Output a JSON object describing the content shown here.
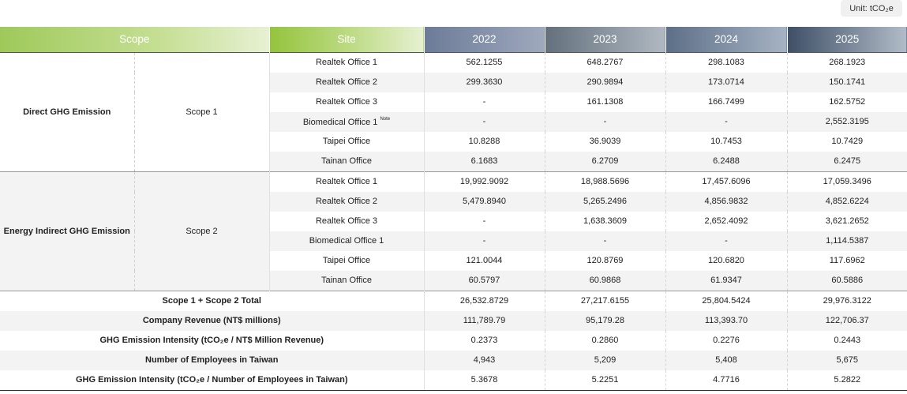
{
  "unit_label": "Unit: tCO₂e",
  "header": {
    "scope": "Scope",
    "site": "Site",
    "years": [
      "2022",
      "2023",
      "2024",
      "2025"
    ]
  },
  "scope1": {
    "category": "Direct GHG Emission",
    "label": "Scope 1",
    "rows": [
      {
        "site": "Realtek Office 1",
        "note": "",
        "values": [
          "562.1255",
          "648.2767",
          "298.1083",
          "268.1923"
        ]
      },
      {
        "site": "Realtek Office 2",
        "note": "",
        "values": [
          "299.3630",
          "290.9894",
          "173.0714",
          "150.1741"
        ]
      },
      {
        "site": "Realtek Office 3",
        "note": "",
        "values": [
          "-",
          "161.1308",
          "166.7499",
          "162.5752"
        ]
      },
      {
        "site": "Biomedical Office 1",
        "note": "Note",
        "values": [
          "-",
          "-",
          "-",
          "2,552.3195"
        ]
      },
      {
        "site": "Taipei Office",
        "note": "",
        "values": [
          "10.8288",
          "36.9039",
          "10.7453",
          "10.7429"
        ]
      },
      {
        "site": "Tainan Office",
        "note": "",
        "values": [
          "6.1683",
          "6.2709",
          "6.2488",
          "6.2475"
        ]
      }
    ]
  },
  "scope2": {
    "category": "Energy Indirect GHG Emission",
    "label": "Scope 2",
    "rows": [
      {
        "site": "Realtek Office 1",
        "values": [
          "19,992.9092",
          "18,988.5696",
          "17,457.6096",
          "17,059.3496"
        ]
      },
      {
        "site": "Realtek Office 2",
        "values": [
          "5,479.8940",
          "5,265.2496",
          "4,856.9832",
          "4,852.6224"
        ]
      },
      {
        "site": "Realtek Office 3",
        "values": [
          "-",
          "1,638.3609",
          "2,652.4092",
          "3,621.2652"
        ]
      },
      {
        "site": "Biomedical Office 1",
        "values": [
          "-",
          "-",
          "-",
          "1,114.5387"
        ]
      },
      {
        "site": "Taipei Office",
        "values": [
          "121.0044",
          "120.8769",
          "120.6820",
          "117.6962"
        ]
      },
      {
        "site": "Tainan Office",
        "values": [
          "60.5797",
          "60.9868",
          "61.9347",
          "60.5886"
        ]
      }
    ]
  },
  "summary": [
    {
      "label": "Scope 1 + Scope 2 Total",
      "values": [
        "26,532.8729",
        "27,217.6155",
        "25,804.5424",
        "29,976.3122"
      ]
    },
    {
      "label": "Company Revenue (NT$ millions)",
      "values": [
        "111,789.79",
        "95,179.28",
        "113,393.70",
        "122,706.37"
      ]
    },
    {
      "label": "GHG Emission Intensity (tCO₂e / NT$ Million Revenue)",
      "values": [
        "0.2373",
        "0.2860",
        "0.2276",
        "0.2443"
      ]
    },
    {
      "label": "Number of Employees in Taiwan",
      "values": [
        "4,943",
        "5,209",
        "5,408",
        "5,675"
      ]
    },
    {
      "label": "GHG Emission Intensity (tCO₂e / Number of Employees in Taiwan)",
      "values": [
        "5.3678",
        "5.2251",
        "4.7716",
        "5.2822"
      ]
    }
  ]
}
